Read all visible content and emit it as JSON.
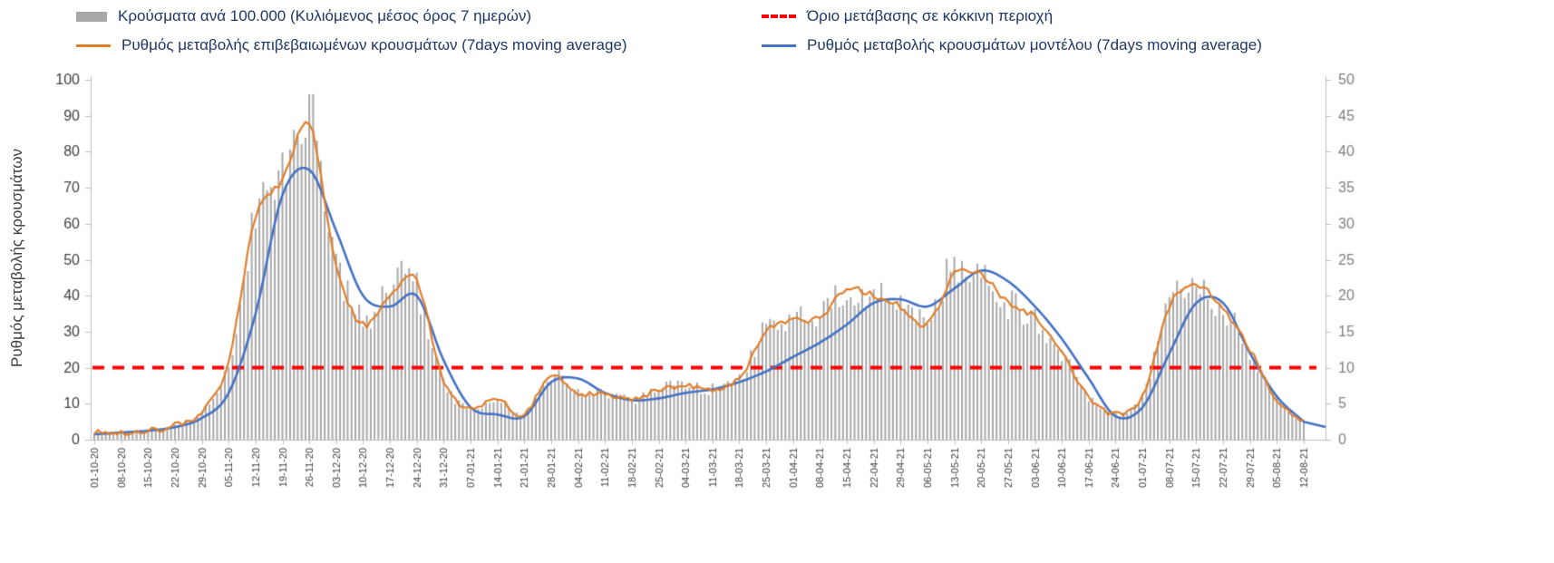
{
  "legend": {
    "items": [
      {
        "label": "Κρούσματα ανά 100.000 (Κυλιόμενος μέσος όρος 7 ημερών)",
        "color": "#a8a8a8",
        "swatch": "bar"
      },
      {
        "label": "Όριο μετάβασης σε κόκκινη περιοχή",
        "color": "#fe0000",
        "swatch": "dashed-line"
      },
      {
        "label": "Ρυθμός μεταβολής επιβεβαιωμένων κρουσμάτων (7days moving average)",
        "color": "#df7f2b",
        "swatch": "line"
      },
      {
        "label": "Ρυθμός μεταβολής κρουσμάτων μοντέλου (7days moving average)",
        "color": "#4472c4",
        "swatch": "line"
      }
    ]
  },
  "axes": {
    "left_title": "Ρυθμός μεταβολής κρουσμάτων",
    "left_ticks": [
      0,
      10,
      20,
      30,
      40,
      50,
      60,
      70,
      80,
      90,
      100
    ],
    "right_ticks": [
      0,
      5,
      10,
      15,
      20,
      25,
      30,
      35,
      40,
      45,
      50
    ]
  },
  "chart_data": {
    "type": "bar+line",
    "title": "",
    "legend_position": "top",
    "grid": false,
    "left_axis": {
      "label": "Ρυθμός μεταβολής κρουσμάτων",
      "range": [
        0,
        100
      ]
    },
    "right_axis": {
      "label": "",
      "range": [
        0,
        50
      ]
    },
    "sampling": "weekly samples read at each x tick; original is daily",
    "categories": [
      "01-10-20",
      "08-10-20",
      "15-10-20",
      "22-10-20",
      "29-10-20",
      "05-11-20",
      "12-11-20",
      "19-11-20",
      "26-11-20",
      "03-12-20",
      "10-12-20",
      "17-12-20",
      "24-12-20",
      "31-12-20",
      "07-01-21",
      "14-01-21",
      "21-01-21",
      "28-01-21",
      "04-02-21",
      "11-02-21",
      "18-02-21",
      "25-02-21",
      "04-03-21",
      "11-03-21",
      "18-03-21",
      "25-03-21",
      "01-04-21",
      "08-04-21",
      "15-04-21",
      "22-04-21",
      "29-04-21",
      "06-05-21",
      "13-05-21",
      "20-05-21",
      "27-05-21",
      "03-06-21",
      "10-06-21",
      "17-06-21",
      "24-06-21",
      "01-07-21",
      "08-07-21",
      "15-07-21",
      "22-07-21",
      "29-07-21",
      "05-08-21",
      "12-08-21"
    ],
    "series": [
      {
        "name": "Κρούσματα ανά 100.000 (Κυλιόμενος μέσος όρος 7 ημερών)",
        "kind": "bar",
        "axis": "right",
        "color": "#a8a8a8",
        "values": [
          1,
          1,
          1.25,
          2,
          4,
          11,
          31.5,
          37,
          46,
          25,
          16.5,
          21.5,
          21,
          8,
          4.5,
          5.5,
          3.5,
          9,
          6.5,
          6.5,
          5.5,
          7,
          7.5,
          7,
          8.5,
          15.5,
          16.5,
          17,
          21,
          20,
          19,
          17.5,
          24,
          23,
          19,
          17,
          12,
          6,
          3.5,
          6,
          18.5,
          21.5,
          18,
          12.5,
          5.5,
          2.5
        ]
      },
      {
        "name": "Ρυθμός μεταβολής επιβεβαιωμένων κρουσμάτων (7days moving average)",
        "kind": "line",
        "axis": "left",
        "color": "#df7f2b",
        "values": [
          2,
          2,
          2.5,
          4,
          8,
          22,
          62,
          72,
          88,
          48,
          32,
          40,
          44,
          16,
          9,
          11,
          7,
          18,
          13,
          13,
          11,
          14,
          15,
          14,
          17,
          30,
          33,
          34,
          42,
          40,
          37,
          32,
          46,
          46,
          38,
          34,
          24,
          12,
          7,
          12,
          37,
          43,
          36,
          25,
          11,
          5
        ]
      },
      {
        "name": "Ρυθμός μεταβολής κρουσμάτων μοντέλου (7days moving average)",
        "kind": "line",
        "axis": "left",
        "color": "#4472c4",
        "values": [
          1.5,
          2,
          2.5,
          3.5,
          6,
          13,
          35,
          68,
          75,
          58,
          40,
          37,
          40,
          22,
          9,
          7,
          6.5,
          16,
          17,
          13,
          11,
          11.5,
          13,
          14,
          16,
          19,
          23,
          27,
          32,
          38,
          39,
          37,
          42,
          47,
          44,
          37,
          28,
          17,
          6.5,
          9,
          24,
          38,
          38,
          24,
          12,
          5
        ]
      },
      {
        "name": "Όριο μετάβασης σε κόκκινη περιοχή",
        "kind": "threshold",
        "axis": "left",
        "color": "#fe0000",
        "value": 20
      }
    ]
  }
}
